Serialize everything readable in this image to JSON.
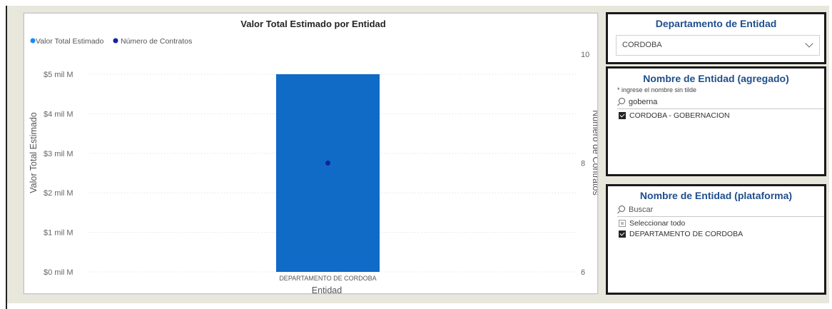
{
  "chart": {
    "title": "Valor Total Estimado por Entidad",
    "legend": [
      {
        "label": "Valor Total Estimado",
        "color": "#118dff",
        "icon": "circle-marker-icon"
      },
      {
        "label": "Número de Contratos",
        "color": "#12239e",
        "icon": "circle-marker-icon"
      }
    ],
    "y_axis_title": "Valor Total Estimado",
    "y2_axis_title": "Número de Contratos",
    "x_axis_title": "Entidad"
  },
  "chart_data": {
    "type": "bar",
    "title": "Valor Total Estimado por Entidad",
    "xlabel": "Entidad",
    "ylabel": "Valor Total Estimado",
    "y2label": "Número de Contratos",
    "categories": [
      "DEPARTAMENTO DE CORDOBA"
    ],
    "ylim": [
      0,
      5
    ],
    "yticks": [
      "$0 mil M",
      "$1 mil M",
      "$2 mil M",
      "$3 mil M",
      "$4 mil M",
      "$5 mil M"
    ],
    "y2lim": [
      6,
      10
    ],
    "y2ticks": [
      "6",
      "8",
      "10"
    ],
    "series": [
      {
        "name": "Valor Total Estimado",
        "type": "bar",
        "values": [
          5.0
        ],
        "color": "#0f6bc6"
      },
      {
        "name": "Número de Contratos",
        "type": "scatter",
        "axis": "secondary",
        "values": [
          8
        ],
        "color": "#12239e"
      }
    ],
    "grid": true,
    "legend_position": "top-left"
  },
  "slicers": {
    "departamento": {
      "title": "Departamento de Entidad",
      "selected": "CORDOBA",
      "icon": "chevron-down-icon"
    },
    "agregado": {
      "title": "Nombre de Entidad (agregado)",
      "note": "* ingrese el nombre sin tilde",
      "search_value": "goberna",
      "items": [
        {
          "label": "CORDOBA - GOBERNACION",
          "checked": true
        }
      ]
    },
    "plataforma": {
      "title": "Nombre de Entidad (plataforma)",
      "search_placeholder": "Buscar",
      "select_all_label": "Seleccionar todo",
      "items": [
        {
          "label": "DEPARTAMENTO DE CORDOBA",
          "checked": true
        }
      ]
    }
  }
}
